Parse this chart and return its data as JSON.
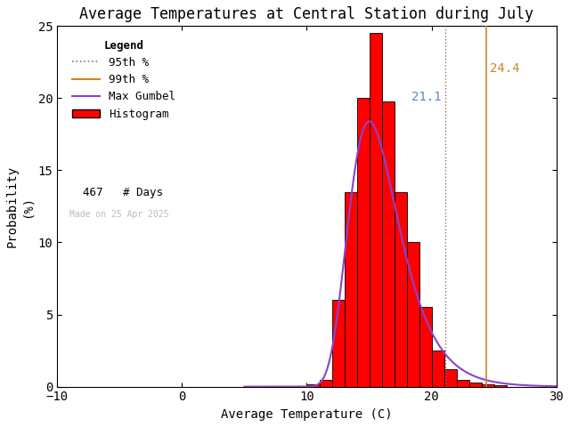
{
  "title": "Average Temperatures at Central Station during July",
  "xlabel": "Average Temperature (C)",
  "ylabel": "Probability\n(%)",
  "xlim": [
    -10,
    30
  ],
  "ylim": [
    0,
    25
  ],
  "xticks": [
    -10,
    0,
    10,
    20,
    30
  ],
  "yticks": [
    0,
    5,
    10,
    15,
    20,
    25
  ],
  "bar_color": "#ff0000",
  "bar_edge_color": "#000000",
  "gumbel_color": "#8844cc",
  "p95_color": "#8b7355",
  "p99_color": "#cc8822",
  "p95_value": 21.1,
  "p99_value": 24.4,
  "p95_label": "21.1",
  "p99_label": "24.4",
  "p95_text_color": "#5588cc",
  "p99_text_color": "#cc8822",
  "n_days": 467,
  "watermark": "Made on 25 Apr 2025",
  "watermark_color": "#bbbbbb",
  "legend_title": "Legend",
  "hist_bins_left": [
    9.0,
    10.0,
    11.0,
    12.0,
    13.0,
    14.0,
    15.0,
    16.0,
    17.0,
    18.0,
    19.0,
    20.0,
    21.0,
    22.0,
    23.0,
    24.0,
    25.0
  ],
  "hist_heights": [
    0.05,
    0.15,
    0.5,
    6.0,
    13.5,
    20.0,
    24.5,
    19.8,
    13.5,
    10.0,
    5.5,
    2.5,
    1.2,
    0.5,
    0.3,
    0.15,
    0.1
  ],
  "gumbel_mu": 15.0,
  "gumbel_beta": 2.0,
  "background_color": "#ffffff",
  "font_family": "monospace",
  "title_fontsize": 12,
  "label_fontsize": 10,
  "tick_fontsize": 10,
  "legend_fontsize": 9,
  "annot_fontsize": 10
}
